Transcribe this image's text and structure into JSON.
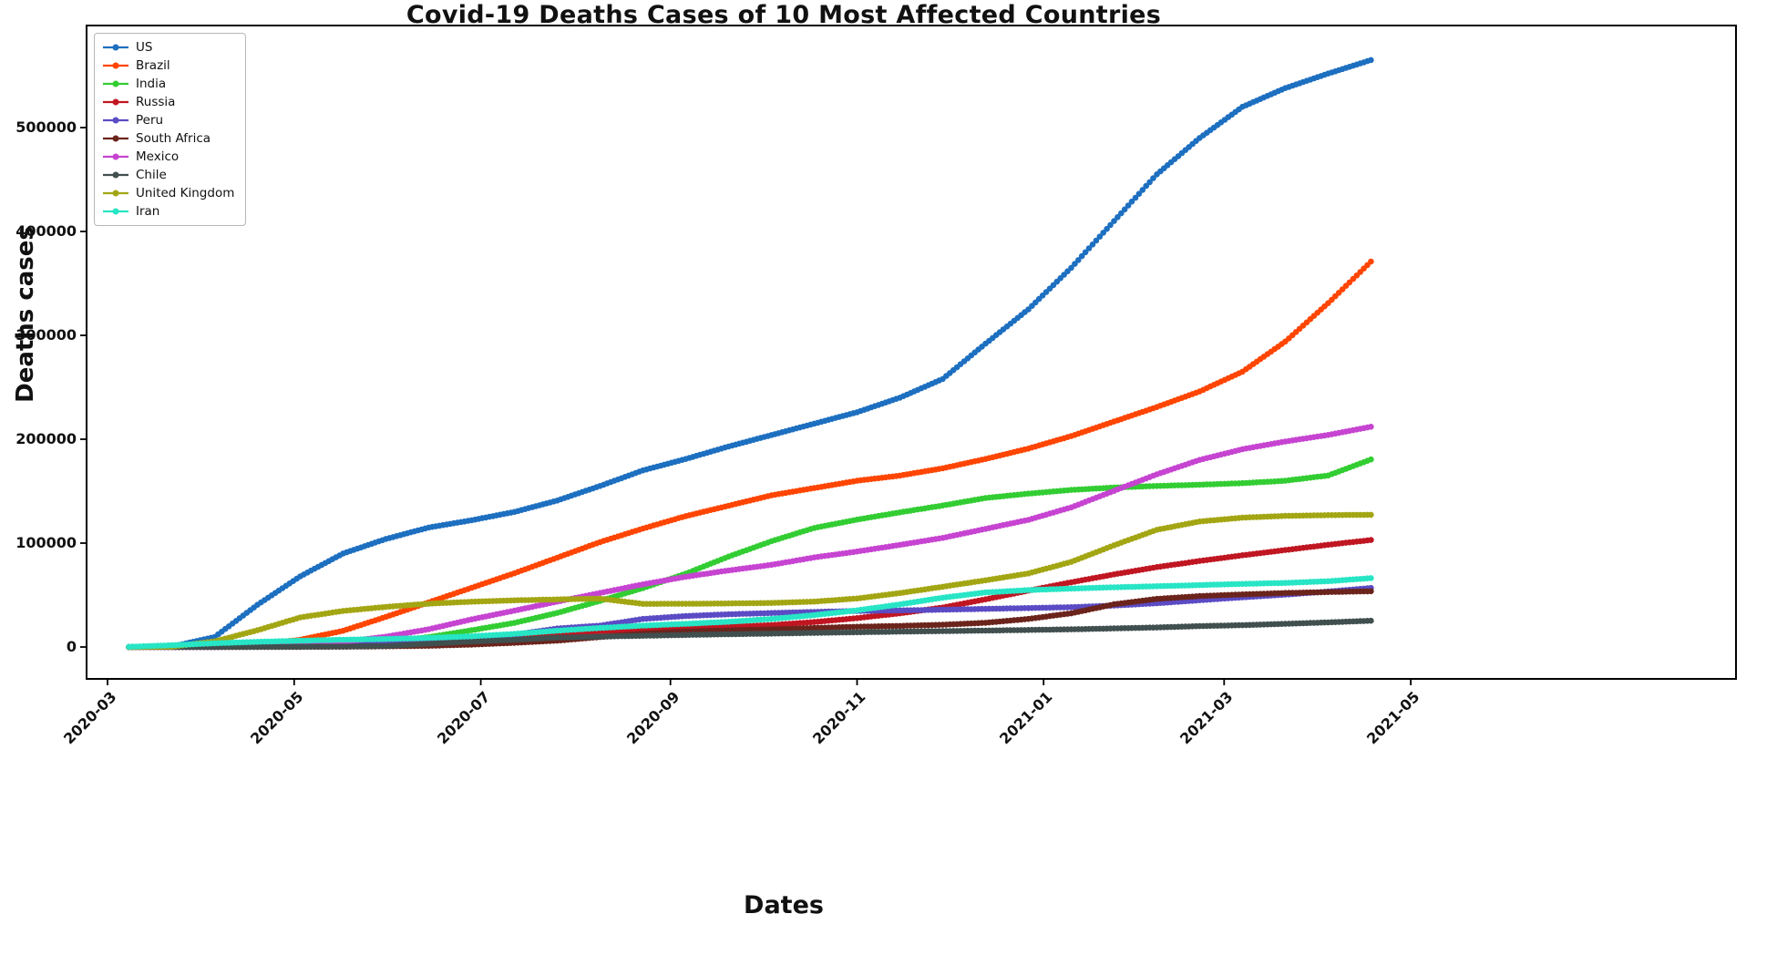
{
  "chart_data": {
    "type": "line",
    "title": "Covid-19 Deaths Cases of 10 Most Affected Countries",
    "xlabel": "Dates",
    "ylabel": "Deaths cases",
    "grid": false,
    "legend_position": "upper left",
    "marker": "circle",
    "x_tick_labels": [
      "2020-03",
      "2020-05",
      "2020-07",
      "2020-09",
      "2020-11",
      "2021-01",
      "2021-03",
      "2021-05"
    ],
    "y_ticks": [
      0,
      100000,
      200000,
      300000,
      400000,
      500000
    ],
    "ylim": [
      -30000,
      598000
    ],
    "x_dates": [
      "2020-03-08",
      "2020-03-22",
      "2020-04-05",
      "2020-04-19",
      "2020-05-03",
      "2020-05-17",
      "2020-05-31",
      "2020-06-14",
      "2020-06-28",
      "2020-07-12",
      "2020-07-26",
      "2020-08-09",
      "2020-08-23",
      "2020-09-06",
      "2020-09-20",
      "2020-10-04",
      "2020-10-18",
      "2020-11-01",
      "2020-11-15",
      "2020-11-29",
      "2020-12-13",
      "2020-12-27",
      "2021-01-10",
      "2021-01-24",
      "2021-02-07",
      "2021-02-21",
      "2021-03-07",
      "2021-03-21",
      "2021-04-04",
      "2021-04-18"
    ],
    "series": [
      {
        "name": "US",
        "color": "#1d6fc0",
        "values": [
          22,
          471,
          9600,
          40600,
          68000,
          90000,
          104000,
          115000,
          122000,
          130000,
          141000,
          155000,
          170000,
          181000,
          193000,
          204000,
          215000,
          226000,
          240000,
          258000,
          292000,
          325000,
          365000,
          410000,
          455000,
          490000,
          520000,
          538000,
          552000,
          565000
        ]
      },
      {
        "name": "Brazil",
        "color": "#ff4500",
        "values": [
          0,
          25,
          480,
          2400,
          7000,
          15600,
          29000,
          43000,
          57000,
          71000,
          86000,
          101000,
          114000,
          126000,
          136000,
          146000,
          153000,
          160000,
          165000,
          172000,
          181000,
          191000,
          203000,
          217000,
          231000,
          246000,
          265000,
          294000,
          331000,
          371000
        ]
      },
      {
        "name": "India",
        "color": "#32cd32",
        "values": [
          0,
          4,
          110,
          520,
          1300,
          2750,
          5200,
          9500,
          16100,
          23200,
          32800,
          44400,
          56700,
          70600,
          87000,
          101800,
          114600,
          122600,
          129600,
          136200,
          143400,
          147600,
          151200,
          153500,
          155000,
          156200,
          157700,
          160000,
          165100,
          180500
        ]
      },
      {
        "name": "Russia",
        "color": "#c01622",
        "values": [
          0,
          0,
          45,
          360,
          1280,
          2530,
          4550,
          6900,
          9000,
          11000,
          13000,
          14900,
          16400,
          17800,
          19400,
          21100,
          24000,
          27800,
          32400,
          38000,
          45900,
          54200,
          62300,
          69900,
          76900,
          82800,
          88300,
          93300,
          98400,
          103000
        ]
      },
      {
        "name": "Peru",
        "color": "#5b4bc4",
        "values": [
          0,
          5,
          100,
          450,
          1300,
          2600,
          4500,
          6900,
          9100,
          11900,
          17800,
          20600,
          27000,
          29800,
          31500,
          32700,
          33800,
          34700,
          35200,
          35900,
          36700,
          37500,
          38300,
          39900,
          42100,
          45000,
          47800,
          50400,
          53400,
          56800
        ]
      },
      {
        "name": "South Africa",
        "color": "#6b241c",
        "values": [
          0,
          0,
          11,
          54,
          130,
          260,
          640,
          1160,
          2300,
          4000,
          6100,
          9600,
          12800,
          14900,
          16000,
          16900,
          18300,
          19500,
          20300,
          21400,
          23300,
          27000,
          32400,
          41100,
          46300,
          49000,
          50600,
          52000,
          52900,
          53700
        ]
      },
      {
        "name": "Mexico",
        "color": "#c644d1",
        "values": [
          0,
          2,
          94,
          690,
          2100,
          5050,
          9900,
          17100,
          26600,
          35000,
          43700,
          52000,
          60300,
          67600,
          73700,
          79100,
          86200,
          91900,
          98300,
          105000,
          113700,
          122400,
          134400,
          150300,
          166200,
          180100,
          190400,
          197800,
          204100,
          212000
        ]
      },
      {
        "name": "Chile",
        "color": "#414f4f",
        "values": [
          0,
          1,
          34,
          126,
          260,
          450,
          1000,
          3100,
          5300,
          6900,
          9000,
          10000,
          10800,
          11600,
          12300,
          12900,
          13600,
          14200,
          14800,
          15300,
          15800,
          16400,
          17000,
          17900,
          18800,
          20100,
          21000,
          22300,
          23700,
          25300
        ]
      },
      {
        "name": "United Kingdom",
        "color": "#a3a613",
        "values": [
          3,
          290,
          5400,
          16100,
          28500,
          34700,
          38600,
          41700,
          43600,
          44900,
          45800,
          46600,
          41500,
          41600,
          41900,
          42400,
          43700,
          46700,
          51900,
          58000,
          64200,
          70800,
          81900,
          97900,
          112800,
          120800,
          124500,
          126200,
          126900,
          127300
        ]
      },
      {
        "name": "Iran",
        "color": "#27e5c5",
        "values": [
          194,
          1685,
          3600,
          5000,
          6100,
          7000,
          7700,
          8700,
          10300,
          12600,
          15700,
          18300,
          20600,
          22300,
          24300,
          27000,
          30700,
          35300,
          41000,
          47500,
          52500,
          54800,
          56200,
          57500,
          58500,
          59600,
          60700,
          61700,
          63300,
          66300
        ]
      }
    ]
  }
}
